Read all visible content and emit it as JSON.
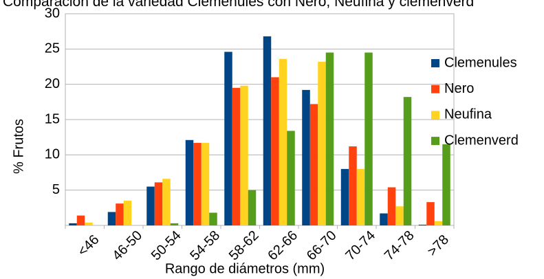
{
  "chart_data": {
    "type": "bar",
    "title": "Comparación de la variedad Clemenules con Nero, Neufina y clemenverd",
    "x_label": "Rango de diámetros (mm)",
    "y_label": "% Frutos",
    "categories": [
      "<46",
      "46-50",
      "50-54",
      "54-58",
      "58-62",
      "62-66",
      "66-70",
      "70-74",
      "74-78",
      ">78"
    ],
    "series": [
      {
        "name": "Clemenules",
        "color": "#004586",
        "values": [
          0.3,
          1.9,
          5.5,
          12.1,
          24.6,
          26.8,
          19.2,
          8.0,
          1.7,
          0.1
        ]
      },
      {
        "name": "Nero",
        "color": "#ff420e",
        "values": [
          1.4,
          3.1,
          6.1,
          11.7,
          19.5,
          21.0,
          17.2,
          11.2,
          5.4,
          3.3
        ]
      },
      {
        "name": "Neufina",
        "color": "#ffd320",
        "values": [
          0.4,
          3.5,
          6.6,
          11.7,
          19.8,
          23.6,
          23.2,
          8.0,
          2.7,
          0.6
        ]
      },
      {
        "name": "Clemenverd",
        "color": "#579d1c",
        "values": [
          0,
          0,
          0.3,
          1.8,
          5.0,
          13.4,
          24.5,
          24.5,
          18.2,
          11.5
        ]
      }
    ],
    "ylim": [
      0,
      30
    ],
    "yticks": [
      5,
      10,
      15,
      20,
      25,
      30
    ],
    "grid": true,
    "legend": "right"
  }
}
